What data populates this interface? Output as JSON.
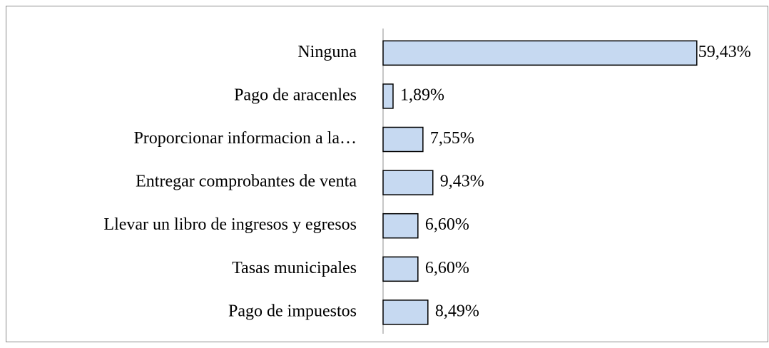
{
  "chart_data": {
    "type": "bar",
    "orientation": "horizontal",
    "categories": [
      "Ninguna",
      "Pago de aracenles",
      "Proporcionar informacion a la…",
      "Entregar comprobantes de venta",
      "Llevar un libro de ingresos y egresos",
      "Tasas municipales",
      "Pago de impuestos"
    ],
    "values": [
      59.43,
      1.89,
      7.55,
      9.43,
      6.6,
      6.6,
      8.49
    ],
    "value_labels": [
      "59,43%",
      "1,89%",
      "7,55%",
      "9,43%",
      "6,60%",
      "6,60%",
      "8,49%"
    ],
    "color": "#c6d9f1"
  }
}
